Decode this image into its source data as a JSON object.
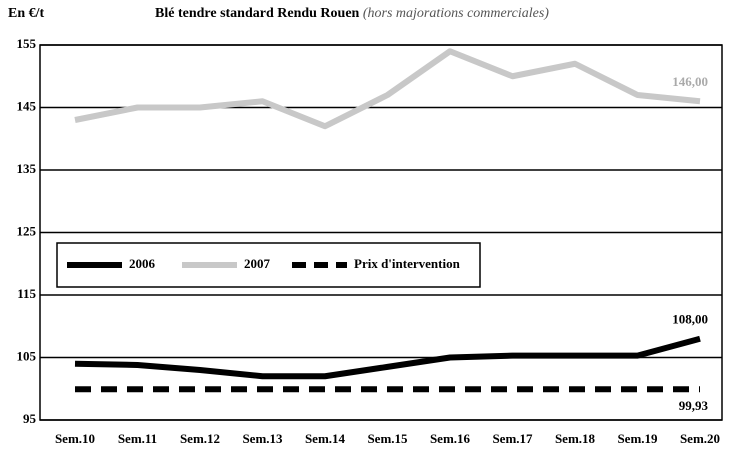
{
  "chart_data": {
    "type": "line",
    "title": "Blé tendre standard Rendu Rouen",
    "subtitle": "(hors majorations commerciales)",
    "y_label": "En €/t",
    "categories": [
      "Sem.10",
      "Sem.11",
      "Sem.12",
      "Sem.13",
      "Sem.14",
      "Sem.15",
      "Sem.16",
      "Sem.17",
      "Sem.18",
      "Sem.19",
      "Sem.20"
    ],
    "series": [
      {
        "name": "2006",
        "color": "#000000",
        "dash": false,
        "values": [
          104,
          103.8,
          103,
          102,
          102,
          103.5,
          105,
          105.3,
          105.3,
          105.3,
          108
        ],
        "value_labels": [
          null,
          null,
          null,
          null,
          null,
          null,
          null,
          null,
          null,
          null,
          "108,00"
        ]
      },
      {
        "name": "2007",
        "color": "#c8c8c8",
        "dash": false,
        "values": [
          143,
          145,
          145,
          146,
          142,
          147,
          154,
          150,
          152,
          147,
          146
        ],
        "value_labels": [
          null,
          null,
          null,
          null,
          null,
          null,
          null,
          null,
          null,
          null,
          "146,00"
        ]
      },
      {
        "name": "Prix d'intervention",
        "color": "#000000",
        "dash": true,
        "values": [
          99.93,
          99.93,
          99.93,
          99.93,
          99.93,
          99.93,
          99.93,
          99.93,
          99.93,
          99.93,
          99.93
        ],
        "value_labels": [
          null,
          null,
          null,
          null,
          null,
          null,
          null,
          null,
          null,
          null,
          "99,93"
        ]
      }
    ],
    "ylim": [
      95,
      155
    ],
    "yticks": [
      95,
      105,
      115,
      125,
      135,
      145,
      155
    ],
    "grid": true,
    "legend": "middle-left"
  }
}
